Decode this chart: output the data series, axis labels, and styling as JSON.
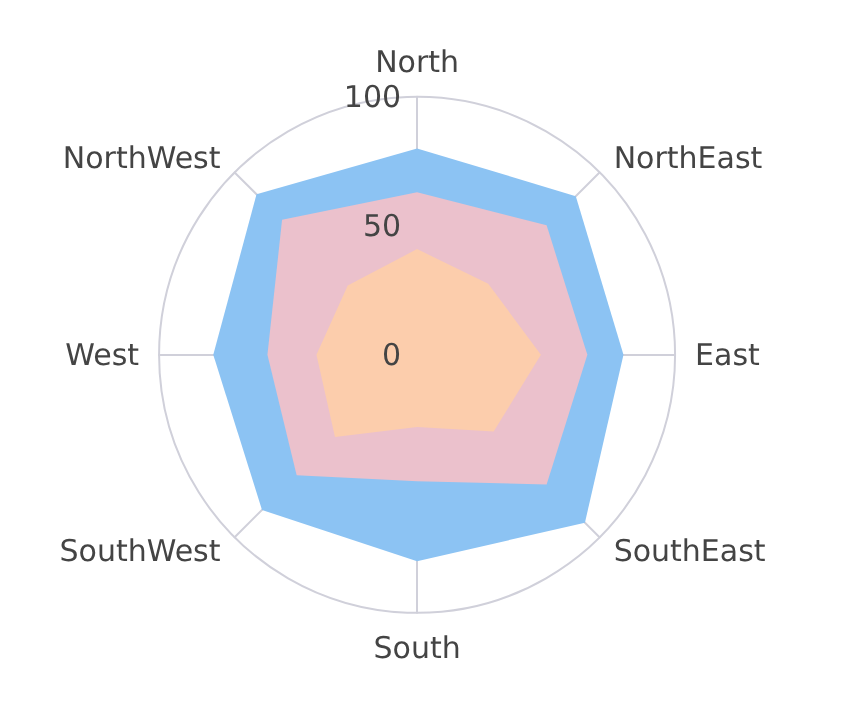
{
  "chart_data": {
    "type": "radar",
    "categories": [
      "North",
      "NorthEast",
      "East",
      "SouthEast",
      "South",
      "SouthWest",
      "West",
      "NorthWest"
    ],
    "ylim": [
      0,
      100
    ],
    "yticks": [
      0,
      50,
      100
    ],
    "marker": "none",
    "series": [
      {
        "color": "#8cc3f3",
        "values": [
          80,
          87,
          80,
          92,
          80,
          85,
          79,
          88
        ]
      },
      {
        "color": "#ebc1cc",
        "values": [
          63,
          71,
          66,
          71,
          49,
          66,
          58,
          74
        ]
      },
      {
        "color": "#fccdac",
        "values": [
          41,
          39,
          48,
          42,
          28,
          45,
          39,
          38
        ]
      }
    ]
  }
}
